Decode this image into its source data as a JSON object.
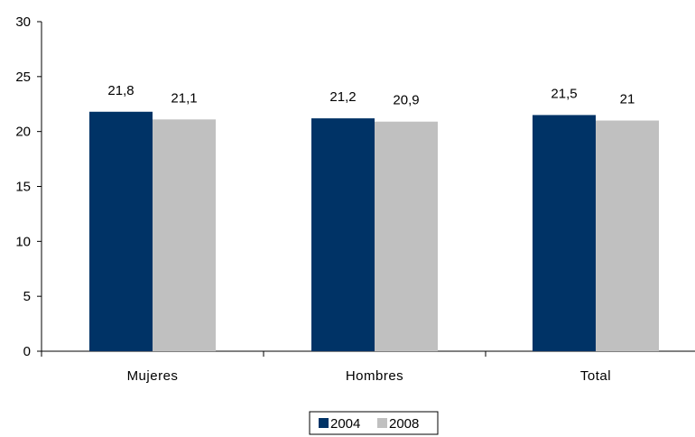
{
  "chart_data": {
    "type": "bar",
    "categories": [
      "Mujeres",
      "Hombres",
      "Total"
    ],
    "series": [
      {
        "name": "2004",
        "values": [
          21.8,
          21.2,
          21.5
        ],
        "labels": [
          "21,8",
          "21,2",
          "21,5"
        ],
        "color": "#003366"
      },
      {
        "name": "2008",
        "values": [
          21.1,
          20.9,
          21.0
        ],
        "labels": [
          "21,1",
          "20,9",
          "21"
        ],
        "color": "#C0C0C0"
      }
    ],
    "ylim": [
      0,
      30
    ],
    "yticks": [
      "0",
      "5",
      "10",
      "15",
      "20",
      "25",
      "30"
    ],
    "grid": false,
    "legend_position": "bottom"
  }
}
